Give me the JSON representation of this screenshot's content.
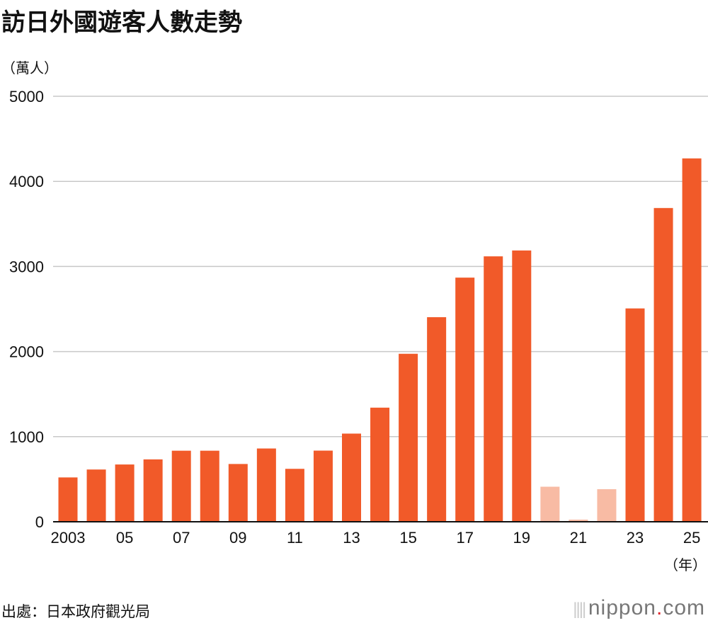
{
  "chart_data": {
    "type": "bar",
    "title": "訪日外國遊客人數走勢",
    "ylabel": "（萬人）",
    "xlabel": "（年）",
    "ylim": [
      0,
      5000
    ],
    "yticks": [
      0,
      1000,
      2000,
      3000,
      4000,
      5000
    ],
    "grid": true,
    "categories": [
      "2003",
      "2004",
      "2005",
      "2006",
      "2007",
      "2008",
      "2009",
      "2010",
      "2011",
      "2012",
      "2013",
      "2014",
      "2015",
      "2016",
      "2017",
      "2018",
      "2019",
      "2020",
      "2021",
      "2022",
      "2023",
      "2024",
      "2025"
    ],
    "xtick_labels": [
      "2003",
      "05",
      "07",
      "09",
      "11",
      "13",
      "15",
      "17",
      "19",
      "21",
      "23",
      "25"
    ],
    "values": [
      521,
      614,
      673,
      733,
      835,
      835,
      679,
      861,
      622,
      836,
      1036,
      1341,
      1974,
      2404,
      2869,
      3119,
      3188,
      412,
      25,
      383,
      2507,
      3687,
      4270
    ],
    "colors": {
      "main": "#f15a29",
      "highlight": "#f8bba4"
    },
    "highlighted_categories": [
      "2020",
      "2021",
      "2022"
    ]
  },
  "source": "出處：日本政府觀光局",
  "logo": {
    "name": "nippon",
    "dot": ".",
    "suffix": "com"
  }
}
